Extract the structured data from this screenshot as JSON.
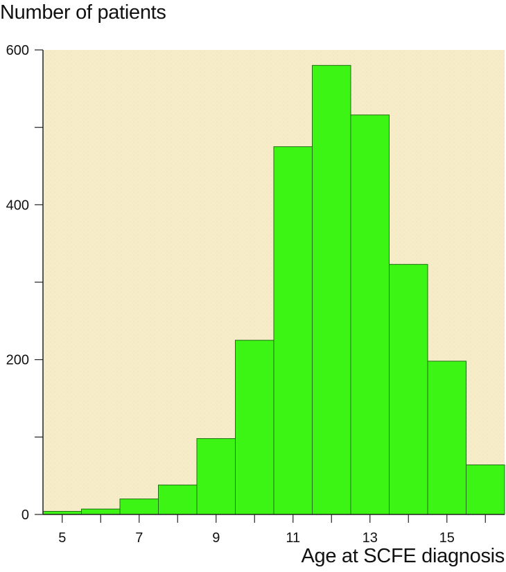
{
  "chart_data": {
    "type": "bar",
    "ylabel": "Number of patients",
    "xlabel": "Age at SCFE diagnosis",
    "categories": [
      5,
      6,
      7,
      8,
      9,
      10,
      11,
      12,
      13,
      14,
      15,
      16
    ],
    "values": [
      4,
      7,
      20,
      38,
      98,
      225,
      475,
      580,
      516,
      323,
      198,
      64
    ],
    "xlim": [
      4.5,
      16.5
    ],
    "ylim": [
      0,
      600
    ],
    "x_tick_labels": [
      "5",
      "7",
      "9",
      "11",
      "13",
      "15"
    ],
    "y_tick_labels": [
      "0",
      "200",
      "400",
      "600"
    ],
    "colors": {
      "bar_fill": "#3cf514",
      "bar_edge": "#1f6f10",
      "plot_background": "#f7ecc8",
      "axis": "#222222"
    }
  }
}
